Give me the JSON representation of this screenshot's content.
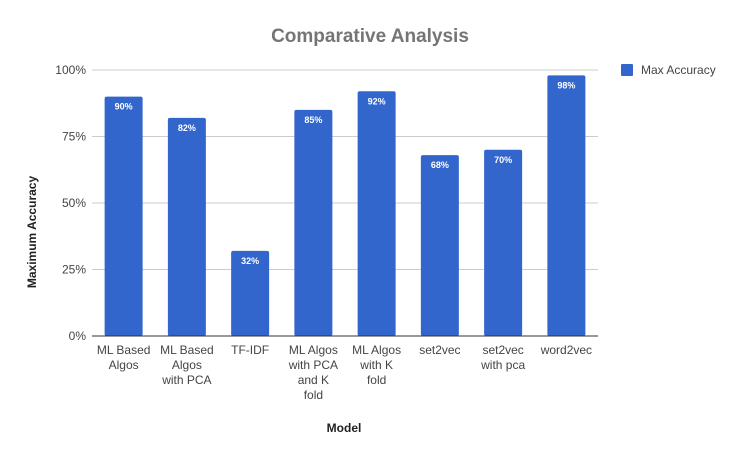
{
  "chart_data": {
    "type": "bar",
    "title": "Comparative Analysis",
    "xlabel": "Model",
    "ylabel": "Maximum Accuracy",
    "categories": [
      [
        "ML Based",
        "Algos"
      ],
      [
        "ML Based",
        "Algos",
        "with PCA"
      ],
      [
        "TF-IDF"
      ],
      [
        "ML Algos",
        "with PCA",
        "and K",
        "fold"
      ],
      [
        "ML Algos",
        "with K",
        "fold"
      ],
      [
        "set2vec"
      ],
      [
        "set2vec",
        "with pca"
      ],
      [
        "word2vec"
      ]
    ],
    "series": [
      {
        "name": "Max Accuracy",
        "color": "#3366cc",
        "values": [
          90,
          82,
          32,
          85,
          92,
          68,
          70,
          98
        ],
        "labels": [
          "90%",
          "82%",
          "32%",
          "85%",
          "92%",
          "68%",
          "70%",
          "98%"
        ]
      }
    ],
    "ylim": [
      0,
      100
    ],
    "yticks": [
      0,
      25,
      50,
      75,
      100
    ],
    "ytick_labels": [
      "0%",
      "25%",
      "50%",
      "75%",
      "100%"
    ],
    "grid": true,
    "legend_position": "top-right"
  }
}
